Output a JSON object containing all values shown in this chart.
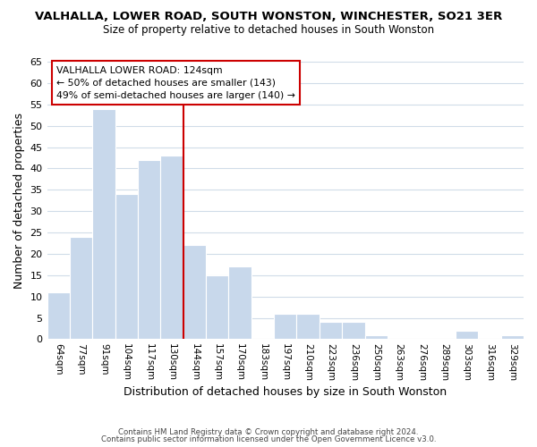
{
  "title": "VALHALLA, LOWER ROAD, SOUTH WONSTON, WINCHESTER, SO21 3ER",
  "subtitle": "Size of property relative to detached houses in South Wonston",
  "xlabel": "Distribution of detached houses by size in South Wonston",
  "ylabel": "Number of detached properties",
  "bar_color": "#c8d8eb",
  "bar_edge_color": "#ffffff",
  "categories": [
    "64sqm",
    "77sqm",
    "91sqm",
    "104sqm",
    "117sqm",
    "130sqm",
    "144sqm",
    "157sqm",
    "170sqm",
    "183sqm",
    "197sqm",
    "210sqm",
    "223sqm",
    "236sqm",
    "250sqm",
    "263sqm",
    "276sqm",
    "289sqm",
    "303sqm",
    "316sqm",
    "329sqm"
  ],
  "values": [
    11,
    24,
    54,
    34,
    42,
    43,
    22,
    15,
    17,
    0,
    6,
    6,
    4,
    4,
    1,
    0,
    0,
    0,
    2,
    0,
    1
  ],
  "ylim": [
    0,
    65
  ],
  "yticks": [
    0,
    5,
    10,
    15,
    20,
    25,
    30,
    35,
    40,
    45,
    50,
    55,
    60,
    65
  ],
  "vline_x": 5.5,
  "vline_color": "#cc0000",
  "annotation_title": "VALHALLA LOWER ROAD: 124sqm",
  "annotation_line1": "← 50% of detached houses are smaller (143)",
  "annotation_line2": "49% of semi-detached houses are larger (140) →",
  "annotation_box_color": "#ffffff",
  "annotation_box_edge": "#cc0000",
  "footer1": "Contains HM Land Registry data © Crown copyright and database right 2024.",
  "footer2": "Contains public sector information licensed under the Open Government Licence v3.0.",
  "background_color": "#ffffff",
  "grid_color": "#d0dce8"
}
